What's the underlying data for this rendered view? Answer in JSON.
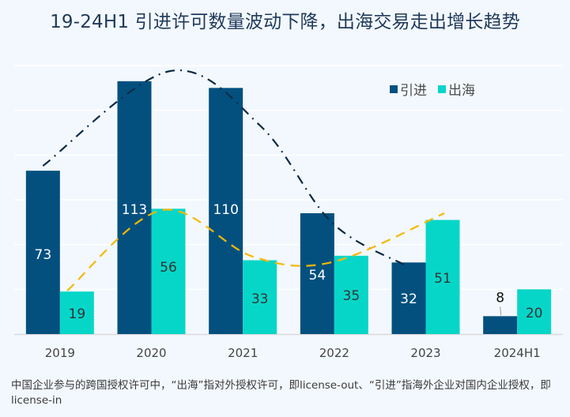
{
  "chart_data": {
    "type": "bar",
    "title": "19-24H1 引进许可数量波动下降，出海交易走出增长趋势",
    "categories": [
      "2019",
      "2020",
      "2021",
      "2022",
      "2023",
      "2024H1"
    ],
    "series": [
      {
        "name": "引进",
        "values": [
          73,
          113,
          110,
          54,
          32,
          8
        ],
        "color": "#03507f",
        "label_color": "#ffffff"
      },
      {
        "name": "出海",
        "values": [
          19,
          56,
          33,
          35,
          51,
          20
        ],
        "color": "#06d6c8",
        "label_color": "#333333"
      }
    ],
    "trendlines": [
      {
        "series": "引进",
        "style": "dash-dot",
        "color": "#0c2a45"
      },
      {
        "series": "出海",
        "style": "dashed",
        "color": "#f5b800"
      }
    ],
    "xlabel": "",
    "ylabel": "",
    "ylim": [
      0,
      120
    ],
    "grid": true,
    "legend": "top-right"
  },
  "footnote": "中国企业参与的跨国授权许可中，“出海”指对外授权许可，即license-out、“引进”指海外企业对国内企业授权，即license-in"
}
